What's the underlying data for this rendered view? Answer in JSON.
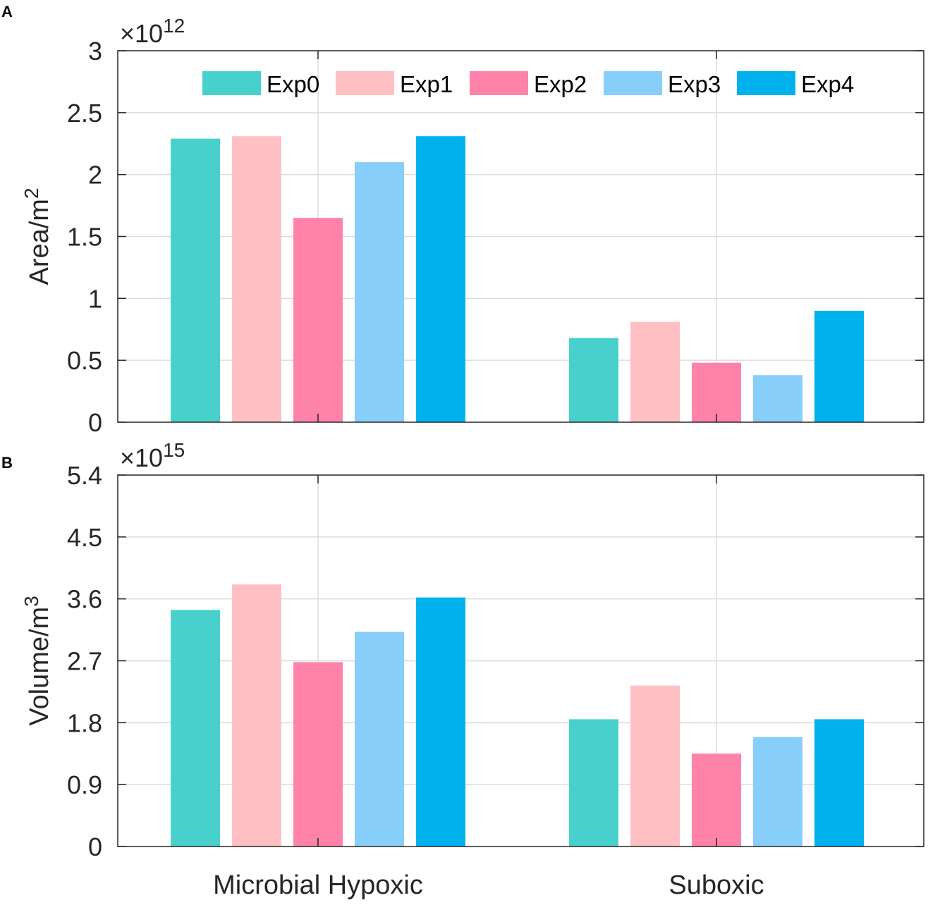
{
  "colors": {
    "Exp0": "#48d1cc",
    "Exp1": "#ffc0c4",
    "Exp2": "#ff82a8",
    "Exp3": "#87cefa",
    "Exp4": "#00b2ec",
    "grid": "#dcdcdc",
    "axis": "#262626"
  },
  "legend": [
    "Exp0",
    "Exp1",
    "Exp2",
    "Exp3",
    "Exp4"
  ],
  "chart_data": [
    {
      "panel_label": "A",
      "type": "bar",
      "exponent": {
        "base": "×10",
        "power": "12"
      },
      "ylabel": {
        "text": "Area/m",
        "sup": "2"
      },
      "ylim": [
        0,
        3
      ],
      "yticks": [
        "0",
        "0.5",
        "1",
        "1.5",
        "2",
        "2.5",
        "3"
      ],
      "ytick_values": [
        0,
        0.5,
        1,
        1.5,
        2,
        2.5,
        3
      ],
      "categories": [
        "Microbial Hypoxic",
        "Suboxic"
      ],
      "series": [
        {
          "name": "Exp0",
          "values": [
            2.29,
            0.68
          ]
        },
        {
          "name": "Exp1",
          "values": [
            2.31,
            0.81
          ]
        },
        {
          "name": "Exp2",
          "values": [
            1.65,
            0.48
          ]
        },
        {
          "name": "Exp3",
          "values": [
            2.1,
            0.38
          ]
        },
        {
          "name": "Exp4",
          "values": [
            2.31,
            0.9
          ]
        }
      ]
    },
    {
      "panel_label": "B",
      "type": "bar",
      "exponent": {
        "base": "×10",
        "power": "15"
      },
      "ylabel": {
        "text": "Volume/m",
        "sup": "3"
      },
      "ylim": [
        0,
        5.4
      ],
      "yticks": [
        "0",
        "0.9",
        "1.8",
        "2.7",
        "3.6",
        "4.5",
        "5.4"
      ],
      "ytick_values": [
        0,
        0.9,
        1.8,
        2.7,
        3.6,
        4.5,
        5.4
      ],
      "categories": [
        "Microbial Hypoxic",
        "Suboxic"
      ],
      "series": [
        {
          "name": "Exp0",
          "values": [
            3.44,
            1.85
          ]
        },
        {
          "name": "Exp1",
          "values": [
            3.81,
            2.34
          ]
        },
        {
          "name": "Exp2",
          "values": [
            2.68,
            1.35
          ]
        },
        {
          "name": "Exp3",
          "values": [
            3.12,
            1.59
          ]
        },
        {
          "name": "Exp4",
          "values": [
            3.62,
            1.85
          ]
        }
      ]
    }
  ]
}
